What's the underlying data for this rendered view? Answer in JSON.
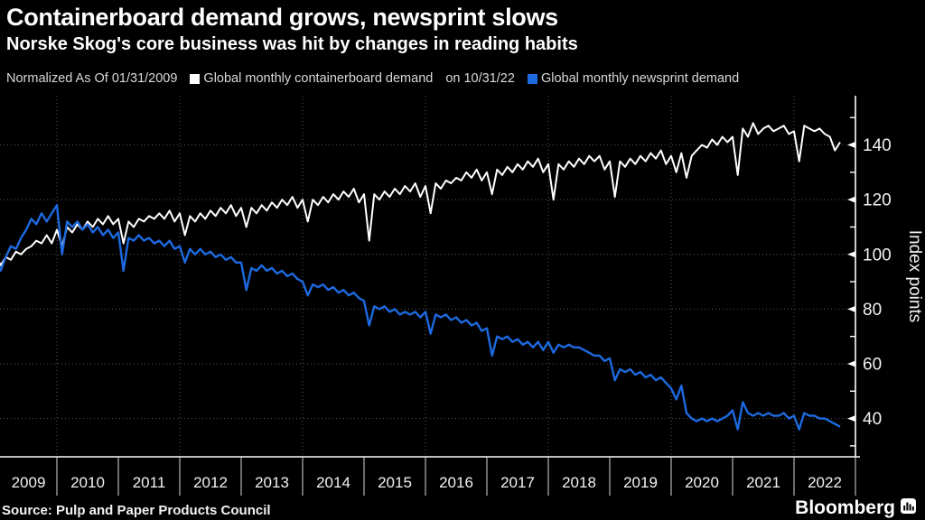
{
  "header": {
    "title": "Containerboard demand grows, newsprint slows",
    "subtitle": "Norske Skog's core business was hit by changes in reading habits"
  },
  "legend": {
    "normalized_label": "Normalized As Of 01/31/2009",
    "as_of_label": "on 10/31/22",
    "series": [
      {
        "label": "Global monthly containerboard demand",
        "color": "#ffffff"
      },
      {
        "label": "Global monthly newsprint demand",
        "color": "#1d6ae0"
      }
    ]
  },
  "footer": {
    "source": "Source: Pulp and Paper Products Council",
    "brand": "Bloomberg"
  },
  "colors": {
    "background": "#000000",
    "axis": "#ffffff",
    "grid": "#5a594e",
    "divider": "#d8d8d8",
    "tick_text": "#f2f2f2",
    "legend_text": "#d9d9d9",
    "containerboard": "#ffffff",
    "newsprint": "#1d6ae0"
  },
  "chart_data": {
    "type": "line",
    "title": "Containerboard demand grows, newsprint slows",
    "xlabel": "",
    "ylabel": "Index points",
    "x_frequency": "monthly",
    "x_start": "2009-01",
    "x_end": "2022-10",
    "normalized_as_of": "01/31/2009",
    "as_of": "10/31/22",
    "years": [
      "2009",
      "2010",
      "2011",
      "2012",
      "2013",
      "2014",
      "2015",
      "2016",
      "2017",
      "2018",
      "2019",
      "2020",
      "2021",
      "2022"
    ],
    "ylim": [
      26,
      158
    ],
    "yticks": [
      40,
      60,
      80,
      100,
      120,
      140
    ],
    "grid": true,
    "legend_position": "top",
    "series": [
      {
        "name": "Global monthly containerboard demand",
        "color": "#ffffff",
        "values": [
          100,
          96,
          99,
          98,
          101,
          100,
          102,
          103,
          105,
          104,
          107,
          104,
          109,
          103,
          110,
          108,
          111,
          109,
          112,
          110,
          113,
          111,
          114,
          111,
          113,
          104,
          112,
          110,
          113,
          112,
          114,
          113,
          115,
          113,
          116,
          112,
          115,
          107,
          114,
          112,
          115,
          113,
          116,
          114,
          117,
          115,
          118,
          114,
          117,
          110,
          117,
          115,
          118,
          116,
          119,
          117,
          120,
          118,
          121,
          117,
          120,
          112,
          120,
          118,
          121,
          119,
          122,
          120,
          123,
          121,
          124,
          119,
          122,
          105,
          122,
          120,
          123,
          121,
          124,
          122,
          125,
          123,
          126,
          121,
          125,
          115,
          126,
          124,
          127,
          126,
          128,
          127,
          130,
          128,
          131,
          127,
          130,
          122,
          131,
          129,
          132,
          130,
          133,
          131,
          134,
          132,
          135,
          130,
          133,
          120,
          133,
          131,
          134,
          132,
          135,
          133,
          136,
          134,
          136,
          131,
          134,
          121,
          134,
          132,
          135,
          133,
          136,
          134,
          137,
          135,
          138,
          133,
          136,
          130,
          137,
          128,
          136,
          138,
          140,
          139,
          142,
          140,
          143,
          141,
          143,
          129,
          146,
          143,
          148,
          144,
          146,
          147,
          145,
          146,
          147,
          144,
          145,
          134,
          147,
          146,
          145,
          146,
          144,
          143,
          138,
          141
        ]
      },
      {
        "name": "Global monthly newsprint demand",
        "color": "#1d6ae0",
        "values": [
          100,
          94,
          99,
          103,
          102,
          106,
          109,
          113,
          111,
          115,
          112,
          115,
          118,
          100,
          112,
          110,
          112,
          109,
          111,
          108,
          110,
          107,
          109,
          106,
          108,
          94,
          106,
          105,
          107,
          105,
          106,
          104,
          105,
          103,
          105,
          102,
          103,
          97,
          102,
          100,
          102,
          100,
          101,
          99,
          100,
          98,
          99,
          97,
          97,
          87,
          95,
          94,
          96,
          94,
          95,
          93,
          94,
          92,
          93,
          91,
          90,
          85,
          89,
          88,
          89,
          87,
          88,
          86,
          87,
          85,
          86,
          84,
          83,
          74,
          81,
          80,
          81,
          79,
          80,
          78,
          79,
          78,
          79,
          77,
          79,
          71,
          78,
          77,
          78,
          76,
          77,
          75,
          76,
          74,
          75,
          72,
          73,
          63,
          70,
          69,
          70,
          68,
          69,
          67,
          68,
          66,
          68,
          65,
          68,
          64,
          67,
          66,
          67,
          66,
          66,
          65,
          64,
          63,
          63,
          61,
          62,
          54,
          58,
          57,
          58,
          56,
          57,
          55,
          56,
          54,
          55,
          53,
          51,
          47,
          52,
          42,
          40,
          39,
          40,
          39,
          40,
          39,
          40,
          41,
          43,
          36,
          46,
          42,
          41,
          42,
          41,
          42,
          41,
          41,
          42,
          40,
          41,
          36,
          42,
          41,
          41,
          40,
          40,
          39,
          38,
          37
        ]
      }
    ]
  }
}
